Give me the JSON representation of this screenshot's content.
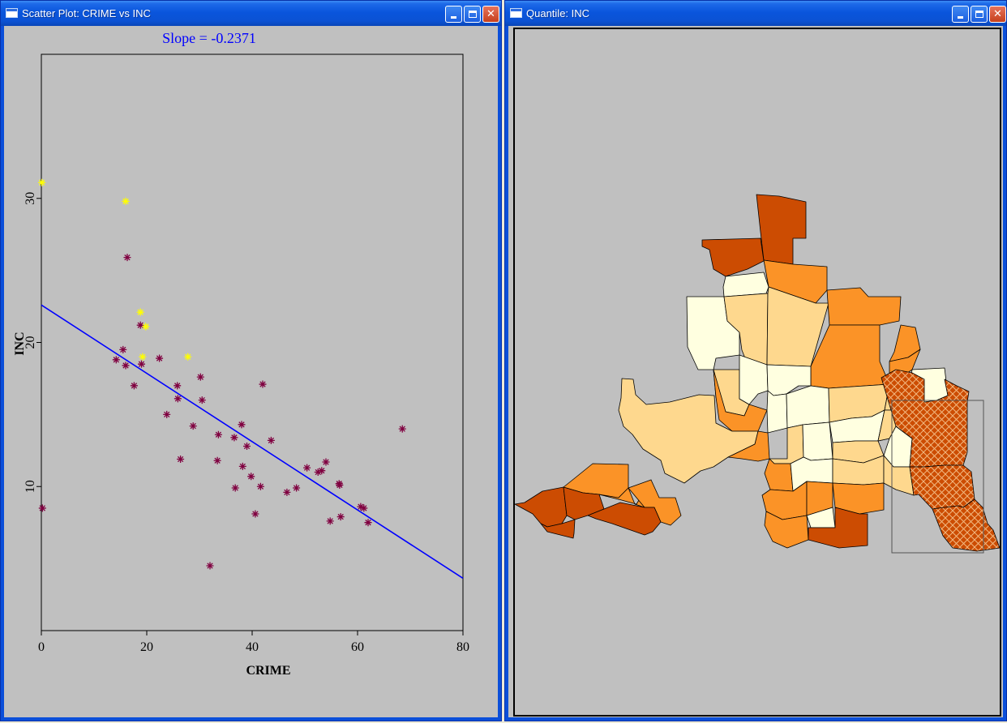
{
  "windows": {
    "scatter": {
      "title": "Scatter Plot: CRIME vs INC",
      "controls": [
        "minimize",
        "maximize",
        "close"
      ]
    },
    "map": {
      "title": "Quantile: INC",
      "controls": [
        "minimize",
        "maximize",
        "close"
      ]
    }
  },
  "chart_data": {
    "type": "scatter",
    "title": "Slope = -0.2371",
    "xlabel": "CRIME",
    "ylabel": "INC",
    "xlim": [
      0,
      80
    ],
    "ylim": [
      0,
      40
    ],
    "x_ticks": [
      "0",
      "20",
      "40",
      "60",
      "80"
    ],
    "y_ticks": [
      "10",
      "20",
      "30"
    ],
    "regression": {
      "slope": -0.2371,
      "intercept": 22.6,
      "color": "#0000ff"
    },
    "series": [
      {
        "color": "#800040",
        "points": [
          [
            0.2,
            8.5
          ],
          [
            14.2,
            18.8
          ],
          [
            15.5,
            19.5
          ],
          [
            16.0,
            18.4
          ],
          [
            16.3,
            25.9
          ],
          [
            17.6,
            17.0
          ],
          [
            18.8,
            21.2
          ],
          [
            19.0,
            18.5
          ],
          [
            22.4,
            18.9
          ],
          [
            23.8,
            15.0
          ],
          [
            25.8,
            17.0
          ],
          [
            25.9,
            16.1
          ],
          [
            26.4,
            11.9
          ],
          [
            28.8,
            14.2
          ],
          [
            30.2,
            17.6
          ],
          [
            30.5,
            16.0
          ],
          [
            32.0,
            4.5
          ],
          [
            33.4,
            11.8
          ],
          [
            33.6,
            13.6
          ],
          [
            36.6,
            13.4
          ],
          [
            36.8,
            9.9
          ],
          [
            38.0,
            14.3
          ],
          [
            38.2,
            11.4
          ],
          [
            39.0,
            12.8
          ],
          [
            39.8,
            10.7
          ],
          [
            40.6,
            8.1
          ],
          [
            41.6,
            10.0
          ],
          [
            42.0,
            17.1
          ],
          [
            43.6,
            13.2
          ],
          [
            46.6,
            9.6
          ],
          [
            48.4,
            9.9
          ],
          [
            50.4,
            11.3
          ],
          [
            52.5,
            11.0
          ],
          [
            53.2,
            11.1
          ],
          [
            54.0,
            11.7
          ],
          [
            54.8,
            7.6
          ],
          [
            56.5,
            10.2
          ],
          [
            56.6,
            10.1
          ],
          [
            56.8,
            7.9
          ],
          [
            60.6,
            8.6
          ],
          [
            61.2,
            8.5
          ],
          [
            62.0,
            7.5
          ],
          [
            68.5,
            14.0
          ]
        ]
      },
      {
        "color": "#ffff00",
        "points": [
          [
            0.1,
            31.1
          ],
          [
            16.0,
            29.8
          ],
          [
            18.8,
            22.1
          ],
          [
            19.8,
            21.1
          ],
          [
            19.2,
            19.0
          ],
          [
            27.8,
            19.0
          ]
        ]
      }
    ]
  },
  "map": {
    "legend_colors": [
      "#ffffe0",
      "#fed88e",
      "#fb9327",
      "#cc4c02"
    ],
    "border_color": "#000000",
    "selection_color": "#555555"
  }
}
